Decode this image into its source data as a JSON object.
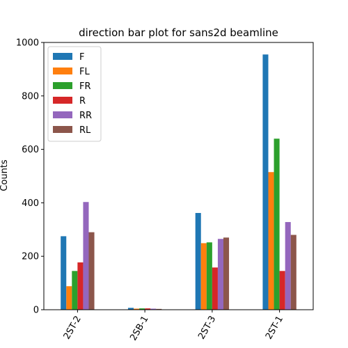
{
  "chart_data": {
    "type": "bar",
    "title": "direction bar plot for sans2d beamline",
    "xlabel": "",
    "ylabel": "Counts",
    "ylim": [
      0,
      1000
    ],
    "yticks": [
      0,
      200,
      400,
      600,
      800,
      1000
    ],
    "tick_labels": [
      "0",
      "200",
      "400",
      "600",
      "800",
      "1000"
    ],
    "categories": [
      "2ST-2",
      "2SB-1",
      "2ST-3",
      "2ST-1"
    ],
    "legend_position": "top-left",
    "grid": false,
    "series": [
      {
        "name": "F",
        "color": "#1f77b4",
        "values": [
          275,
          7,
          362,
          955
        ]
      },
      {
        "name": "FL",
        "color": "#ff7f0e",
        "values": [
          88,
          4,
          249,
          515
        ]
      },
      {
        "name": "FR",
        "color": "#2ca02c",
        "values": [
          145,
          5,
          252,
          640
        ]
      },
      {
        "name": "R",
        "color": "#d62728",
        "values": [
          177,
          5,
          158,
          145
        ]
      },
      {
        "name": "RR",
        "color": "#9467bd",
        "values": [
          403,
          4,
          265,
          328
        ]
      },
      {
        "name": "RL",
        "color": "#8c564b",
        "values": [
          290,
          3,
          270,
          280
        ]
      }
    ]
  }
}
